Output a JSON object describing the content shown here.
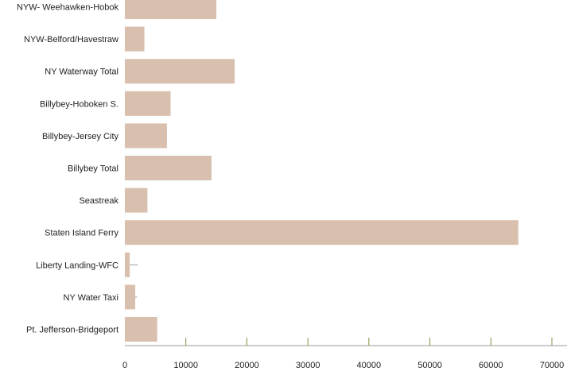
{
  "chart_data": {
    "type": "bar",
    "orientation": "horizontal",
    "categories": [
      "NYW- Weehawken-Hobok",
      "NYW-Belford/Havestraw",
      "NY Waterway Total",
      "Billybey-Hoboken S.",
      "Billybey-Jersey City",
      "Billybey Total",
      "Seastreak",
      "Staten Island Ferry",
      "Liberty Landing-WFC",
      "NY Water Taxi",
      "Pt. Jefferson-Bridgeport"
    ],
    "values": [
      15000,
      3200,
      18000,
      7500,
      6900,
      14200,
      3700,
      64500,
      800,
      1700,
      5300
    ],
    "error_bars": [
      null,
      null,
      null,
      null,
      null,
      null,
      null,
      null,
      1300,
      300,
      null
    ],
    "x_ticks": [
      "0",
      "10000",
      "20000",
      "30000",
      "40000",
      "50000",
      "60000",
      "70000"
    ],
    "xlim": [
      0,
      70000
    ],
    "title": "",
    "xlabel": "",
    "ylabel": "",
    "grid": false,
    "legend": "none",
    "colors": {
      "bar": "#d9c0ae",
      "axis": "#999999",
      "tick": "#8c8c40",
      "error": "#999999"
    }
  }
}
